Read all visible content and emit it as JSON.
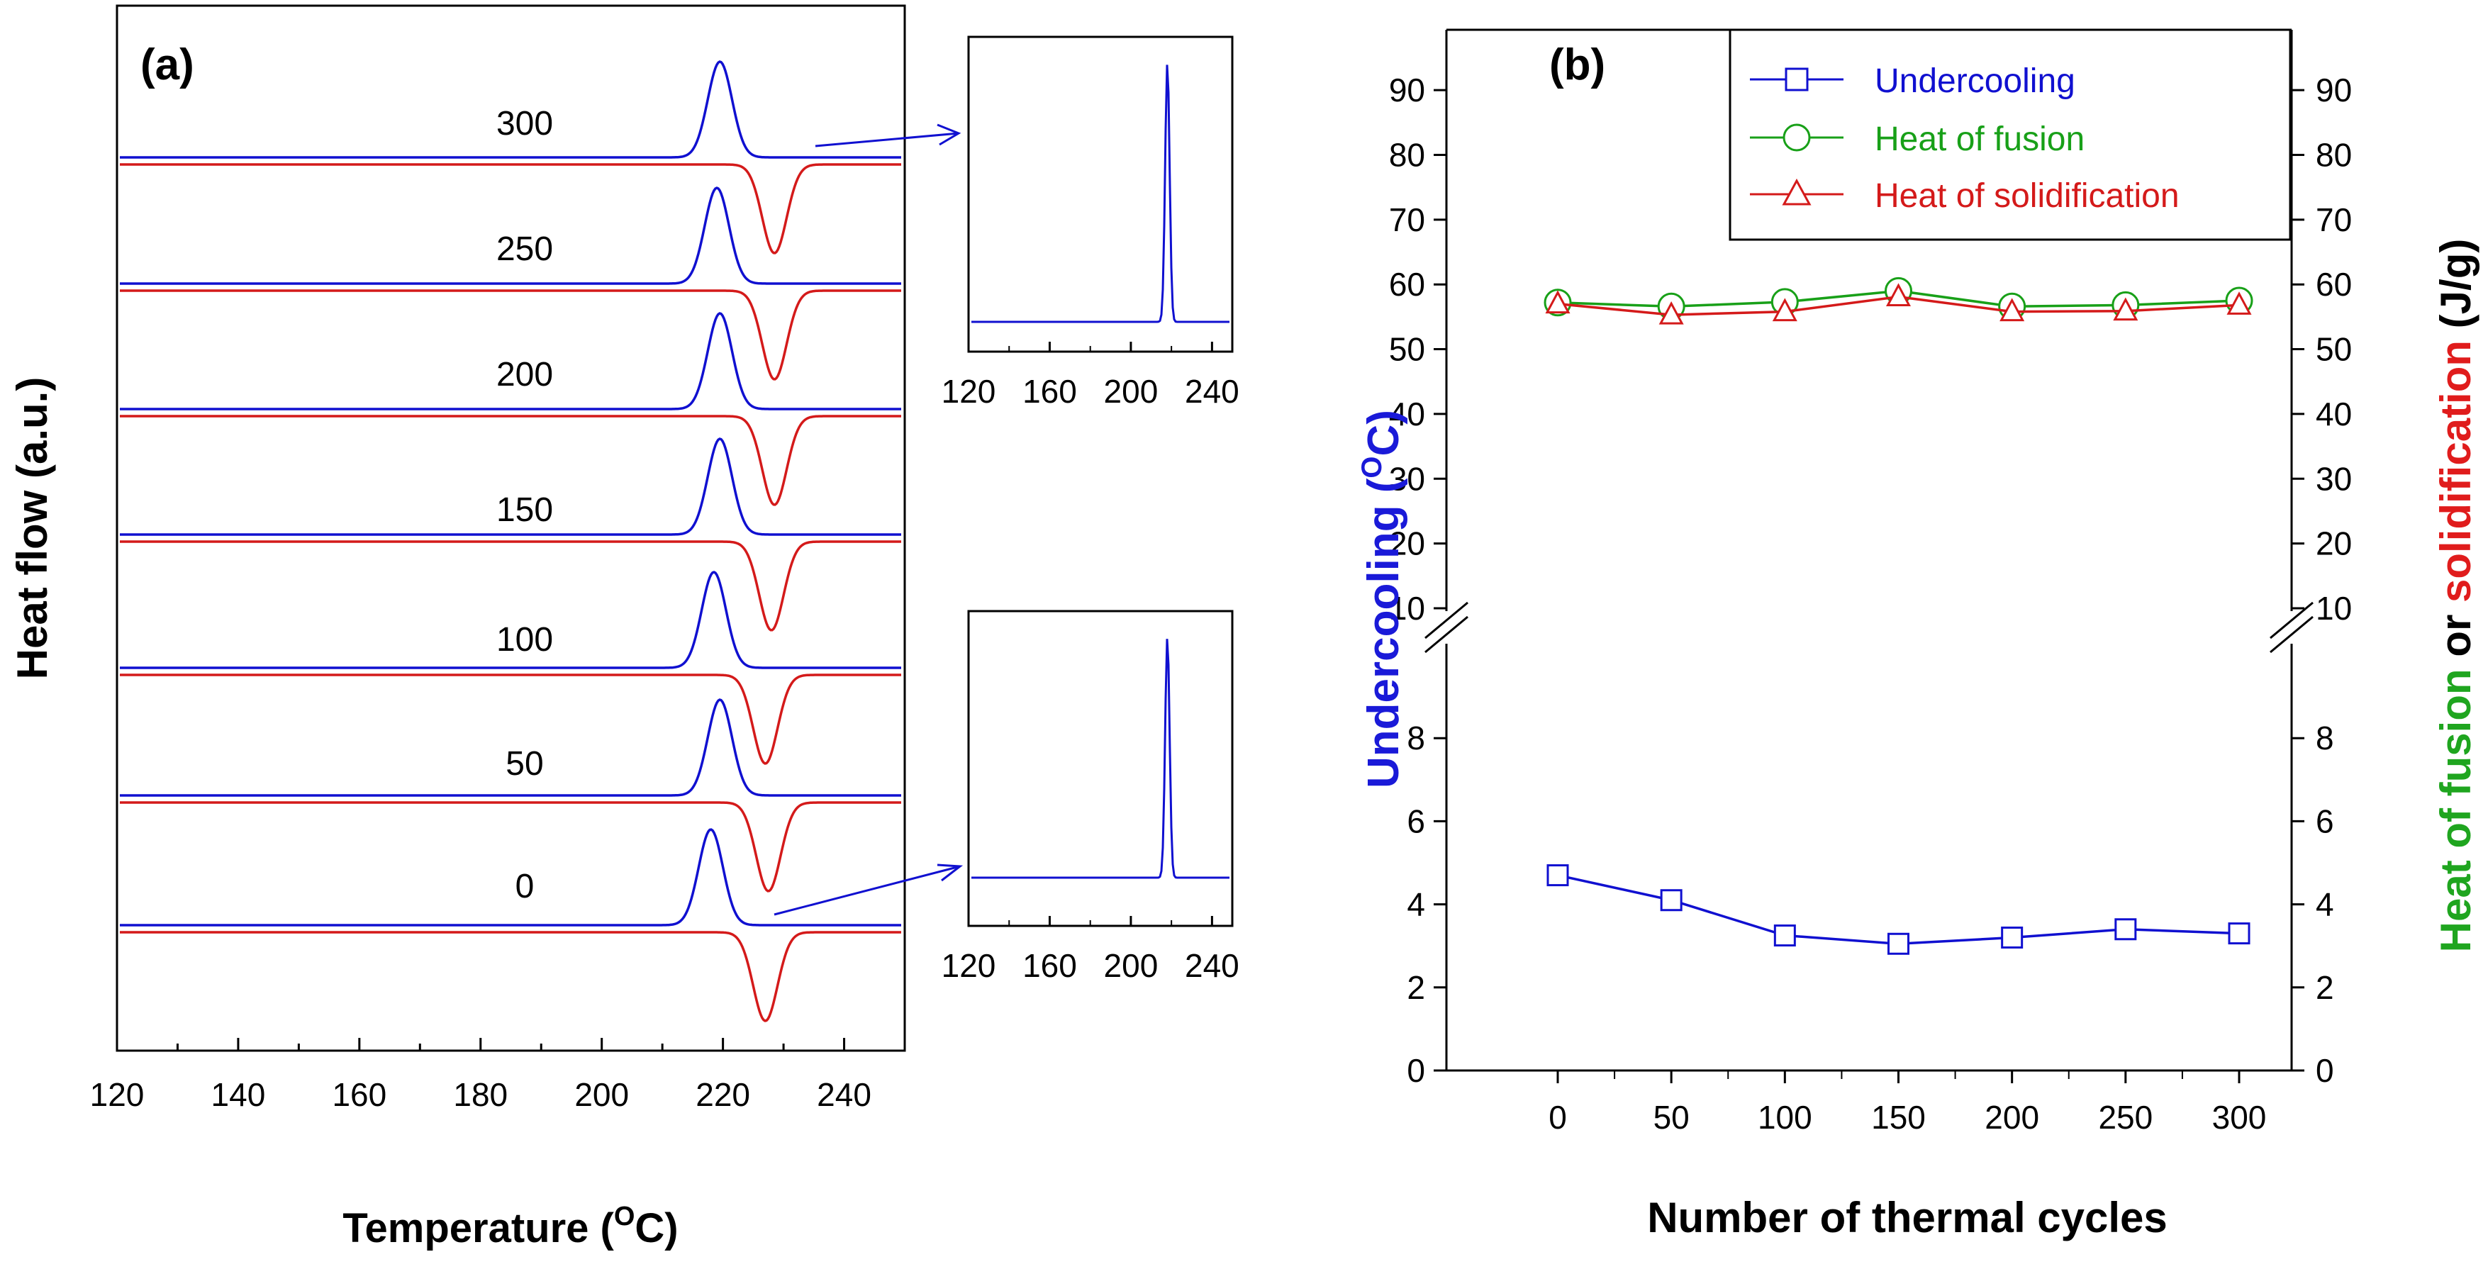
{
  "panel_a": {
    "label": "(a)",
    "xlabel": "Temperature (",
    "xlabel_sup": "O",
    "xlabel_end": "C)",
    "ylabel": "Heat flow (a.u.)",
    "inset_top_ticks": [
      "120",
      "160",
      "200",
      "240"
    ],
    "inset_bottom_ticks": [
      "120",
      "160",
      "200",
      "240"
    ]
  },
  "panel_b": {
    "label": "(b)",
    "xlabel": "Number of thermal cycles",
    "ylabel_left": "Undercooling (",
    "ylabel_left_sup": "O",
    "ylabel_left_end": "C)",
    "ylabel_right_fusion": "Heat of fusion",
    "ylabel_right_or": " or ",
    "ylabel_right_solid": "solidification",
    "ylabel_right_unit": " (J/g)",
    "legend": [
      "Undercooling",
      "Heat of fusion",
      "Heat of solidification"
    ]
  },
  "colors": {
    "blue": "#1010d0",
    "red": "#d41a1a",
    "green": "#18a018",
    "undercooling_label": "#1a1ad8",
    "fusion_label": "#1fa51f",
    "solid_label": "#e01c1c"
  },
  "chart_data": [
    {
      "type": "line",
      "title": "",
      "xlabel": "Temperature (OC)",
      "ylabel": "Heat flow (a.u.)",
      "xlim": [
        120,
        250
      ],
      "x_ticks": [
        120,
        140,
        160,
        180,
        200,
        220,
        240
      ],
      "curves": [
        {
          "cycles": "300",
          "heating_peak_c": 219.5,
          "cooling_peak_c": 228.5
        },
        {
          "cycles": "250",
          "heating_peak_c": 219.0,
          "cooling_peak_c": 228.5
        },
        {
          "cycles": "200",
          "heating_peak_c": 219.5,
          "cooling_peak_c": 228.5
        },
        {
          "cycles": "150",
          "heating_peak_c": 219.5,
          "cooling_peak_c": 228.0
        },
        {
          "cycles": "100",
          "heating_peak_c": 218.5,
          "cooling_peak_c": 227.0
        },
        {
          "cycles": "50",
          "heating_peak_c": 219.5,
          "cooling_peak_c": 227.5
        },
        {
          "cycles": "0",
          "heating_peak_c": 218.0,
          "cooling_peak_c": 227.0
        }
      ],
      "insets": [
        {
          "attached_to": "300",
          "xlim": [
            120,
            250
          ],
          "peak_c": 218
        },
        {
          "attached_to": "0",
          "xlim": [
            120,
            250
          ],
          "peak_c": 218
        }
      ]
    },
    {
      "type": "line",
      "title": "",
      "xlabel": "Number of thermal cycles",
      "ylabel": "Undercooling (OC)",
      "ylabel_right": "Heat of fusion or solidification (J/g)",
      "x": [
        0,
        50,
        100,
        150,
        200,
        250,
        300
      ],
      "x_ticks": [
        0,
        50,
        100,
        150,
        200,
        250,
        300
      ],
      "ylim_lower": [
        0,
        10
      ],
      "ylim_upper": [
        10,
        95
      ],
      "y_ticks_lower": [
        0,
        2,
        4,
        6,
        8
      ],
      "y_ticks_upper": [
        10,
        20,
        30,
        40,
        50,
        60,
        70,
        80,
        90
      ],
      "legend_position": "top-right",
      "series": [
        {
          "name": "Undercooling",
          "color": "#1010d0",
          "marker": "square",
          "values": [
            4.7,
            4.1,
            3.25,
            3.05,
            3.2,
            3.4,
            3.3
          ]
        },
        {
          "name": "Heat of fusion",
          "color": "#18a018",
          "marker": "circle",
          "values": [
            57.2,
            56.6,
            57.3,
            59.0,
            56.6,
            56.8,
            57.5
          ]
        },
        {
          "name": "Heat of solidification",
          "color": "#d41a1a",
          "marker": "triangle",
          "values": [
            57.0,
            55.3,
            55.8,
            58.1,
            55.8,
            55.9,
            56.8
          ]
        }
      ]
    }
  ]
}
